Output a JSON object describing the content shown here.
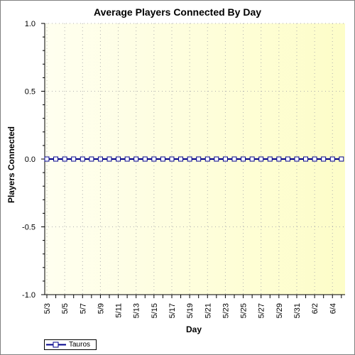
{
  "chart_data": {
    "type": "line",
    "title": "Average Players Connected By Day",
    "xlabel": "Day",
    "ylabel": "Players Connected",
    "ylim": [
      -1.0,
      1.0
    ],
    "yticks": [
      "1.0",
      "0.5",
      "0.0",
      "-0.5",
      "-1.0"
    ],
    "tick_labels": [
      "5/3",
      "5/5",
      "5/7",
      "5/9",
      "5/11",
      "5/13",
      "5/15",
      "5/17",
      "5/19",
      "5/21",
      "5/23",
      "5/25",
      "5/27",
      "5/29",
      "5/31",
      "6/2",
      "6/4"
    ],
    "categories": [
      "5/3",
      "5/4",
      "5/5",
      "5/6",
      "5/7",
      "5/8",
      "5/9",
      "5/10",
      "5/11",
      "5/12",
      "5/13",
      "5/14",
      "5/15",
      "5/16",
      "5/17",
      "5/18",
      "5/19",
      "5/20",
      "5/21",
      "5/22",
      "5/23",
      "5/24",
      "5/25",
      "5/26",
      "5/27",
      "5/28",
      "5/29",
      "5/30",
      "5/31",
      "6/1",
      "6/2",
      "6/3",
      "6/4",
      "6/5"
    ],
    "series": [
      {
        "name": "Tauros",
        "color": "#00008b",
        "values": [
          0,
          0,
          0,
          0,
          0,
          0,
          0,
          0,
          0,
          0,
          0,
          0,
          0,
          0,
          0,
          0,
          0,
          0,
          0,
          0,
          0,
          0,
          0,
          0,
          0,
          0,
          0,
          0,
          0,
          0,
          0,
          0,
          0,
          0
        ]
      }
    ],
    "grid": true,
    "legend_position": "bottom-left",
    "background_colors": [
      "#fffff0",
      "#fdfdc8"
    ]
  }
}
